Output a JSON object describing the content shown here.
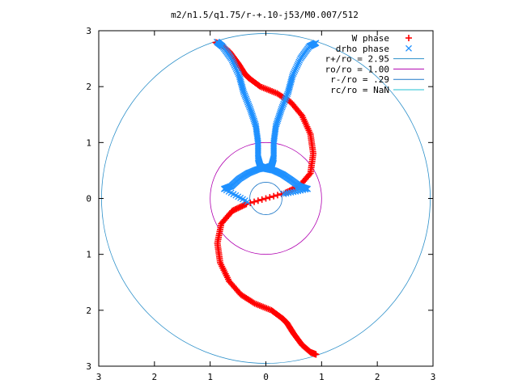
{
  "chart_data": {
    "type": "scatter",
    "title": "m2/n1.5/q1.75/r-+.10-j53/M0.007/512",
    "xlim": [
      -3,
      3
    ],
    "ylim": [
      -3,
      3
    ],
    "x_ticks": [
      -3,
      -2,
      -1,
      0,
      1,
      2,
      3
    ],
    "y_ticks": [
      3,
      2,
      1,
      0,
      -1,
      -2,
      -3
    ],
    "x_tick_labels": [
      "3",
      "2",
      "1",
      "0",
      "1",
      "2",
      "3"
    ],
    "y_tick_labels": [
      "3",
      "2",
      "1",
      "0",
      "1",
      "2",
      "3"
    ],
    "grid": false,
    "legend_position": "top-right",
    "series": [
      {
        "name": "W phase",
        "marker": "plus",
        "color": "#ff0000",
        "points": [
          [
            -0.9,
            2.79
          ],
          [
            -0.8,
            2.75
          ],
          [
            -0.65,
            2.62
          ],
          [
            -0.5,
            2.42
          ],
          [
            -0.38,
            2.23
          ],
          [
            -0.3,
            2.15
          ],
          [
            -0.1,
            2.0
          ],
          [
            0.2,
            1.88
          ],
          [
            0.45,
            1.72
          ],
          [
            0.65,
            1.48
          ],
          [
            0.8,
            1.15
          ],
          [
            0.85,
            0.8
          ],
          [
            0.8,
            0.45
          ],
          [
            0.6,
            0.22
          ],
          [
            0.35,
            0.1
          ],
          [
            -0.35,
            -0.1
          ],
          [
            -0.6,
            -0.22
          ],
          [
            -0.8,
            -0.45
          ],
          [
            -0.87,
            -0.8
          ],
          [
            -0.82,
            -1.15
          ],
          [
            -0.66,
            -1.48
          ],
          [
            -0.45,
            -1.72
          ],
          [
            -0.2,
            -1.88
          ],
          [
            0.1,
            -2.0
          ],
          [
            0.3,
            -2.15
          ],
          [
            0.38,
            -2.23
          ],
          [
            0.5,
            -2.42
          ],
          [
            0.65,
            -2.62
          ],
          [
            0.8,
            -2.75
          ],
          [
            0.9,
            -2.79
          ]
        ]
      },
      {
        "name": "drho phase",
        "marker": "cross",
        "color": "#1e90ff",
        "points": [
          [
            -0.88,
            2.8
          ],
          [
            -0.78,
            2.72
          ],
          [
            -0.62,
            2.5
          ],
          [
            -0.48,
            2.2
          ],
          [
            -0.4,
            1.9
          ],
          [
            -0.28,
            1.6
          ],
          [
            -0.18,
            1.3
          ],
          [
            -0.14,
            1.0
          ],
          [
            -0.14,
            0.72
          ],
          [
            -0.1,
            0.58
          ],
          [
            0.0,
            0.53
          ],
          [
            0.15,
            0.5
          ],
          [
            0.3,
            0.43
          ],
          [
            0.45,
            0.33
          ],
          [
            0.6,
            0.22
          ],
          [
            0.75,
            0.17
          ],
          [
            0.32,
            0.08
          ],
          [
            0.9,
            2.78
          ],
          [
            0.78,
            2.72
          ],
          [
            0.62,
            2.5
          ],
          [
            0.48,
            2.2
          ],
          [
            0.4,
            1.9
          ],
          [
            0.28,
            1.6
          ],
          [
            0.18,
            1.3
          ],
          [
            0.14,
            1.0
          ],
          [
            0.14,
            0.72
          ],
          [
            0.1,
            0.58
          ],
          [
            0.0,
            0.55
          ],
          [
            -0.15,
            0.52
          ],
          [
            -0.32,
            0.45
          ],
          [
            -0.48,
            0.35
          ],
          [
            -0.62,
            0.22
          ],
          [
            -0.75,
            0.17
          ],
          [
            -0.33,
            -0.06
          ]
        ]
      }
    ],
    "circles": [
      {
        "name": "r+/ro = 2.95",
        "radius": 2.95,
        "color": "#2b8fc9"
      },
      {
        "name": "ro/ro = 1.00",
        "radius": 1.0,
        "color": "#b000b0"
      },
      {
        "name": "r-/ro = .29",
        "radius": 0.29,
        "color": "#1e78c8"
      },
      {
        "name": "rc/ro = NaN",
        "radius": null,
        "color": "#20c0d0"
      }
    ]
  }
}
